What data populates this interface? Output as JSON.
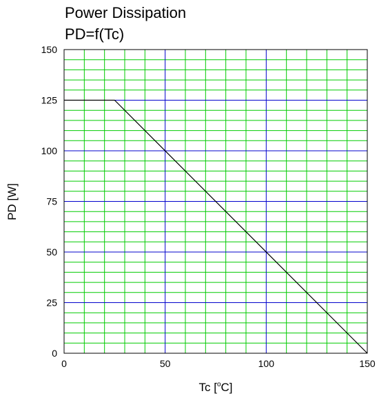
{
  "chart_data": {
    "type": "line",
    "title_lines": [
      "Power Dissipation",
      "PD=f(Tc)"
    ],
    "xlabel": {
      "prefix": "Tc [",
      "sup": "o",
      "suffix": "C]"
    },
    "ylabel": "PD [W]",
    "xlim": [
      0,
      150
    ],
    "ylim": [
      0,
      150
    ],
    "x_major_ticks": [
      0,
      50,
      100,
      150
    ],
    "y_major_ticks": [
      0,
      25,
      50,
      75,
      100,
      125,
      150
    ],
    "x_tick_labels": [
      "0",
      "50",
      "100",
      "150"
    ],
    "y_tick_labels": [
      "0",
      "25",
      "50",
      "75",
      "100",
      "125",
      "150"
    ],
    "x_minor_step": 10,
    "y_minor_step": 5,
    "grid": true,
    "colors": {
      "minor_grid": "#00cc00",
      "major_grid": "#0000cc",
      "line": "#000000",
      "frame": "#000000"
    },
    "series": [
      {
        "x": [
          0,
          25,
          150
        ],
        "y": [
          125,
          125,
          0
        ]
      }
    ]
  }
}
